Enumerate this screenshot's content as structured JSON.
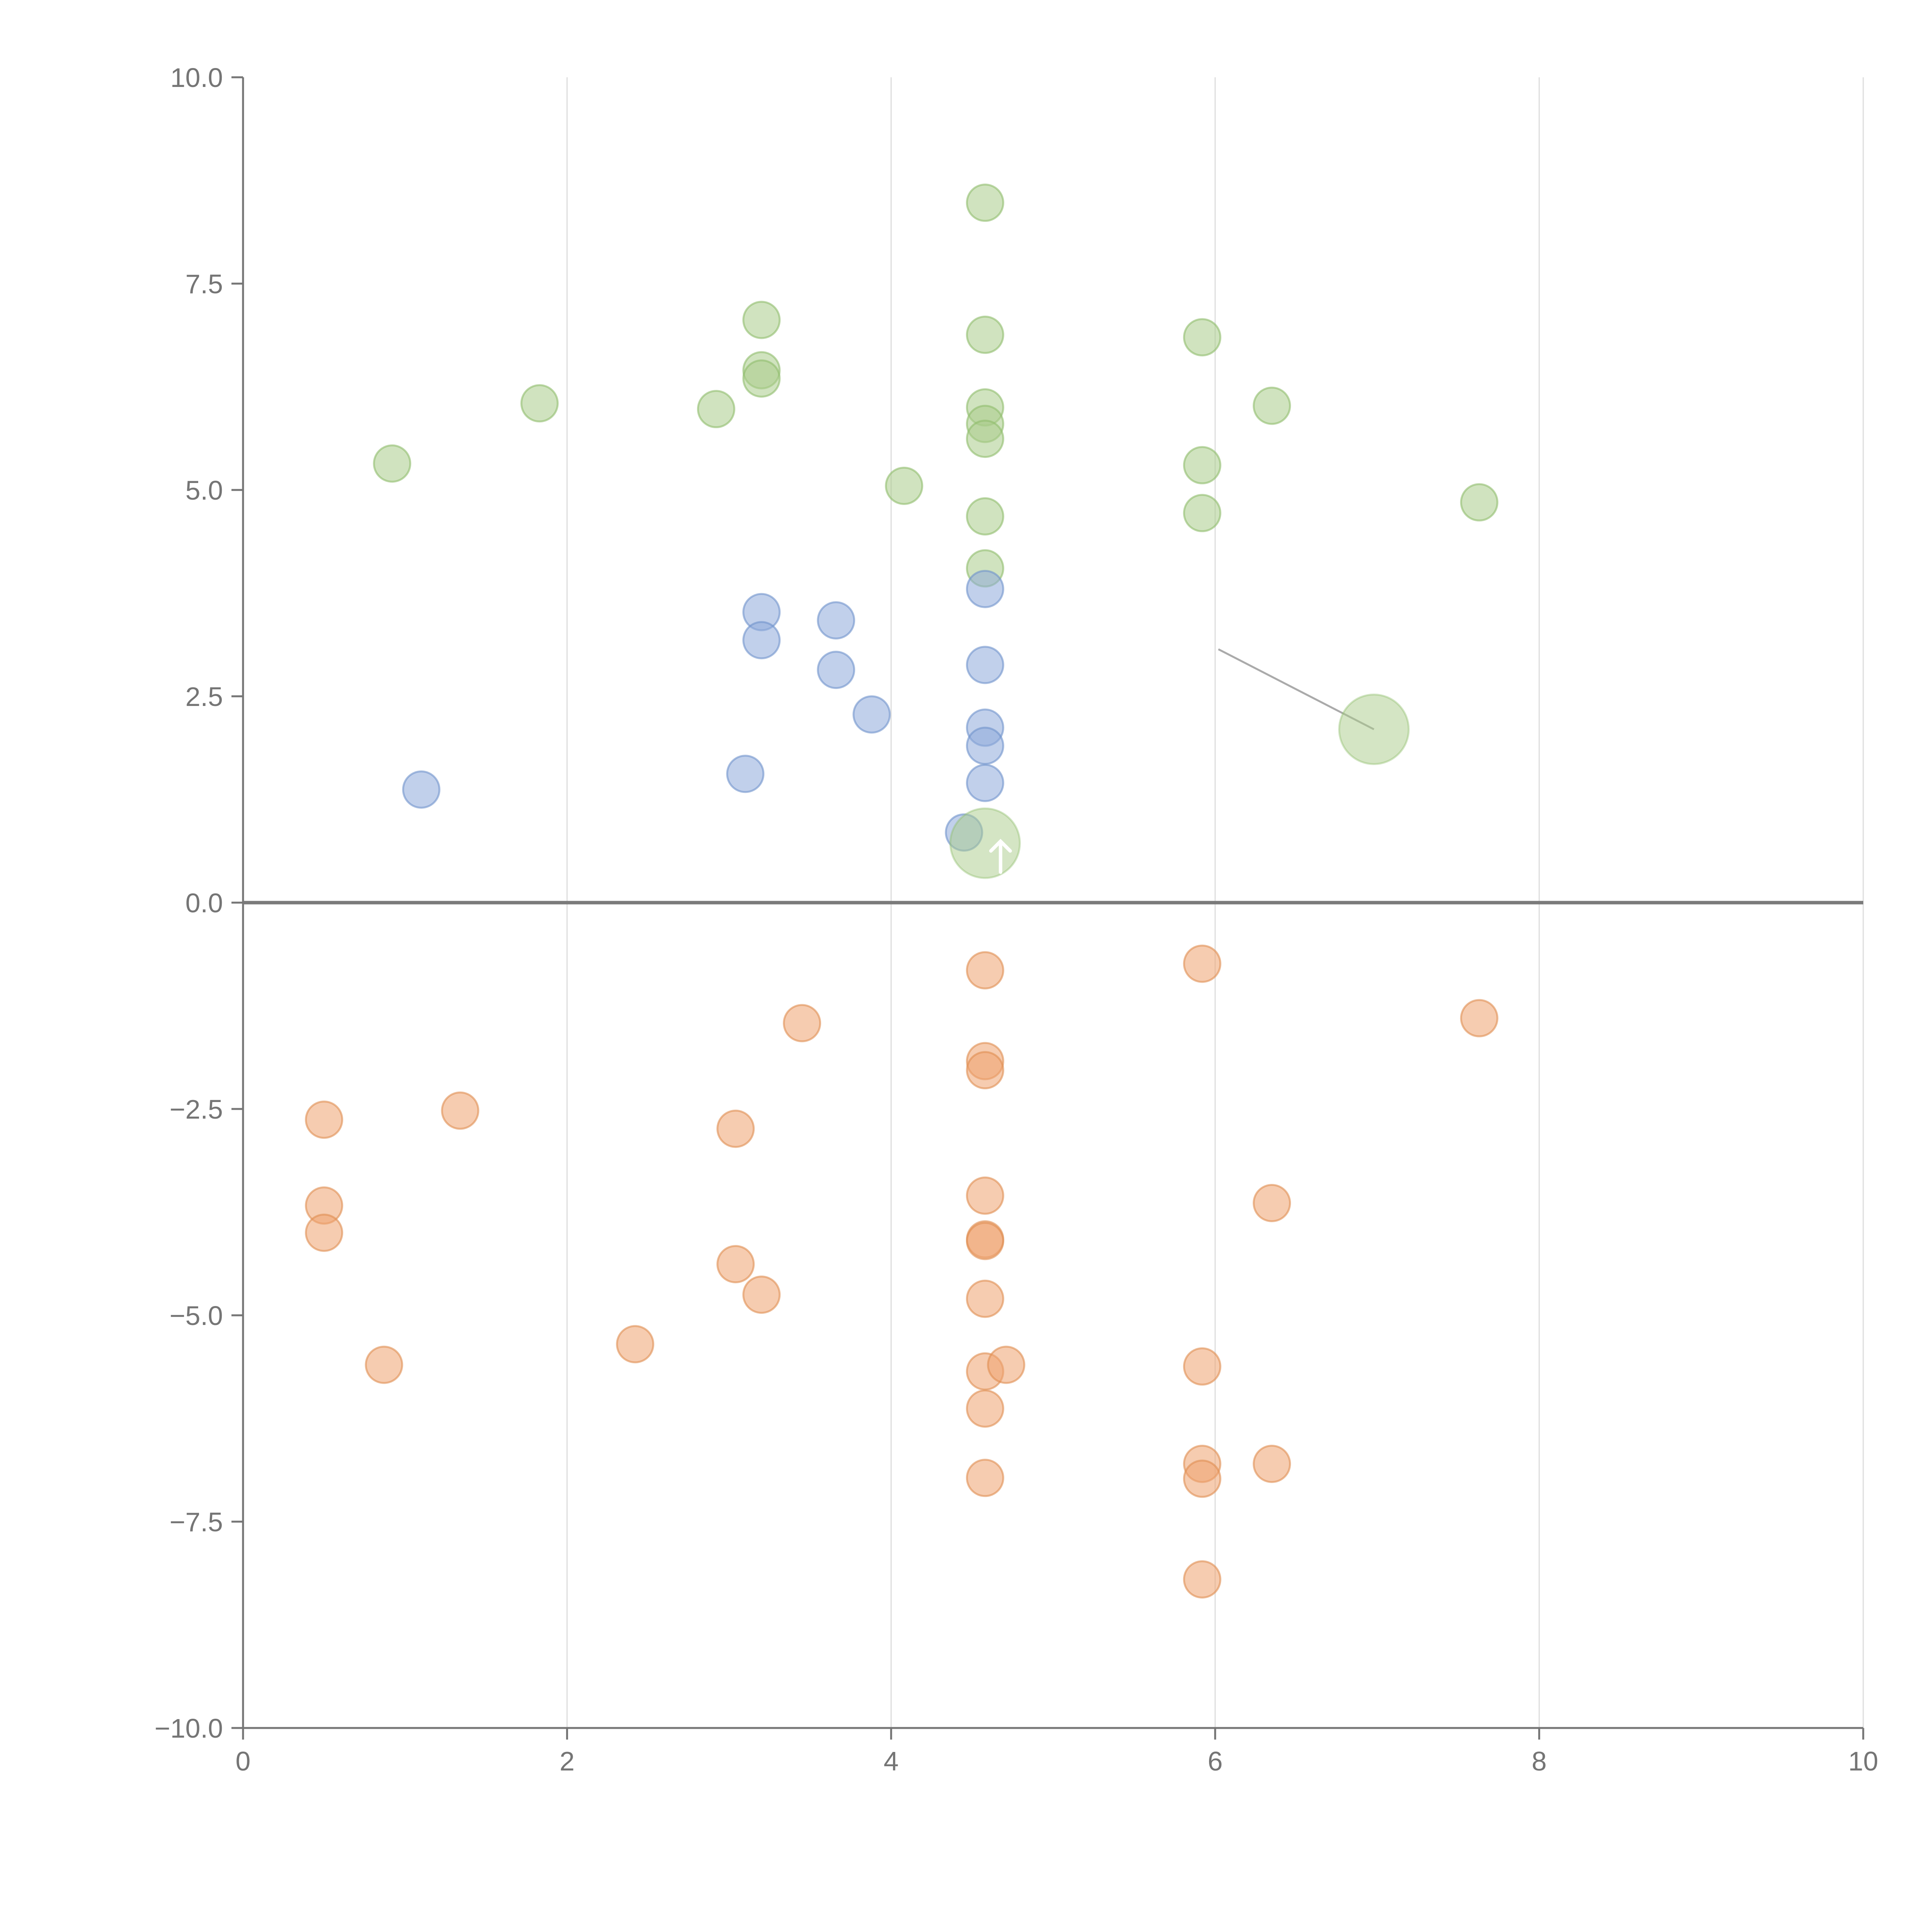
{
  "chart_data": {
    "type": "scatter",
    "title": "",
    "xlabel": "",
    "ylabel": "",
    "xlim": [
      0,
      10
    ],
    "ylim": [
      -10,
      10
    ],
    "x_ticks": [
      0,
      2,
      4,
      6,
      8,
      10
    ],
    "x_tick_labels": [
      "0",
      "2",
      "4",
      "6",
      "8",
      "10"
    ],
    "y_ticks": [
      10,
      7.5,
      5,
      2.5,
      0,
      -2.5,
      -5,
      -7.5,
      -10
    ],
    "y_tick_labels": [
      "10.0",
      "7.5",
      "5.0",
      "2.5",
      "0.0",
      "−2.5",
      "−5.0",
      "−7.5",
      "−10.0"
    ],
    "grid": "vertical",
    "reference_line_y": 0,
    "series": [
      {
        "name": "green",
        "color": "#a9cc8a",
        "stroke": "#8fbd6c",
        "points": [
          [
            0.92,
            5.32
          ],
          [
            1.83,
            6.05
          ],
          [
            2.92,
            5.98
          ],
          [
            3.2,
            7.06
          ],
          [
            3.2,
            6.45
          ],
          [
            3.2,
            6.35
          ],
          [
            4.08,
            5.05
          ],
          [
            4.58,
            8.48
          ],
          [
            4.58,
            6.88
          ],
          [
            4.58,
            6.0
          ],
          [
            4.58,
            5.8
          ],
          [
            4.58,
            5.62
          ],
          [
            4.58,
            4.68
          ],
          [
            4.58,
            4.05
          ],
          [
            5.92,
            6.85
          ],
          [
            5.92,
            5.3
          ],
          [
            5.92,
            4.72
          ],
          [
            6.35,
            6.02
          ],
          [
            7.63,
            4.85
          ]
        ]
      },
      {
        "name": "blue",
        "color": "#8eaadb",
        "stroke": "#6f93cc",
        "points": [
          [
            1.1,
            1.37
          ],
          [
            3.1,
            1.56
          ],
          [
            3.2,
            3.52
          ],
          [
            3.2,
            3.18
          ],
          [
            3.66,
            3.42
          ],
          [
            3.66,
            2.82
          ],
          [
            3.88,
            2.28
          ],
          [
            4.45,
            0.85
          ],
          [
            4.58,
            3.8
          ],
          [
            4.58,
            2.88
          ],
          [
            4.58,
            2.12
          ],
          [
            4.58,
            1.9
          ],
          [
            4.58,
            1.45
          ]
        ]
      },
      {
        "name": "orange",
        "color": "#eea36f",
        "stroke": "#e08d52",
        "points": [
          [
            0.5,
            -2.63
          ],
          [
            0.5,
            -3.67
          ],
          [
            0.5,
            -4.0
          ],
          [
            0.87,
            -5.6
          ],
          [
            1.34,
            -2.52
          ],
          [
            2.42,
            -5.35
          ],
          [
            3.04,
            -2.74
          ],
          [
            3.04,
            -4.38
          ],
          [
            3.2,
            -4.75
          ],
          [
            3.45,
            -1.46
          ],
          [
            4.58,
            -0.82
          ],
          [
            4.58,
            -1.92
          ],
          [
            4.58,
            -2.03
          ],
          [
            4.58,
            -3.55
          ],
          [
            4.58,
            -4.08
          ],
          [
            4.58,
            -4.1
          ],
          [
            4.58,
            -4.8
          ],
          [
            4.58,
            -5.68
          ],
          [
            4.58,
            -6.13
          ],
          [
            4.58,
            -6.97
          ],
          [
            4.71,
            -5.6
          ],
          [
            5.92,
            -0.74
          ],
          [
            5.92,
            -5.62
          ],
          [
            5.92,
            -6.8
          ],
          [
            5.92,
            -6.98
          ],
          [
            5.92,
            -8.2
          ],
          [
            6.35,
            -3.64
          ],
          [
            6.35,
            -6.8
          ],
          [
            7.63,
            -1.4
          ]
        ]
      }
    ],
    "highlighted_points": [
      {
        "x": 4.58,
        "y": 0.72,
        "color": "#a9cc8a",
        "stroke": "#8fbd6c",
        "size": "large",
        "marker": "arrow"
      },
      {
        "x": 6.98,
        "y": 2.1,
        "color": "#a9cc8a",
        "stroke": "#8fbd6c",
        "size": "large",
        "callout_from": {
          "x": 6.02,
          "y": 3.07
        }
      }
    ]
  }
}
